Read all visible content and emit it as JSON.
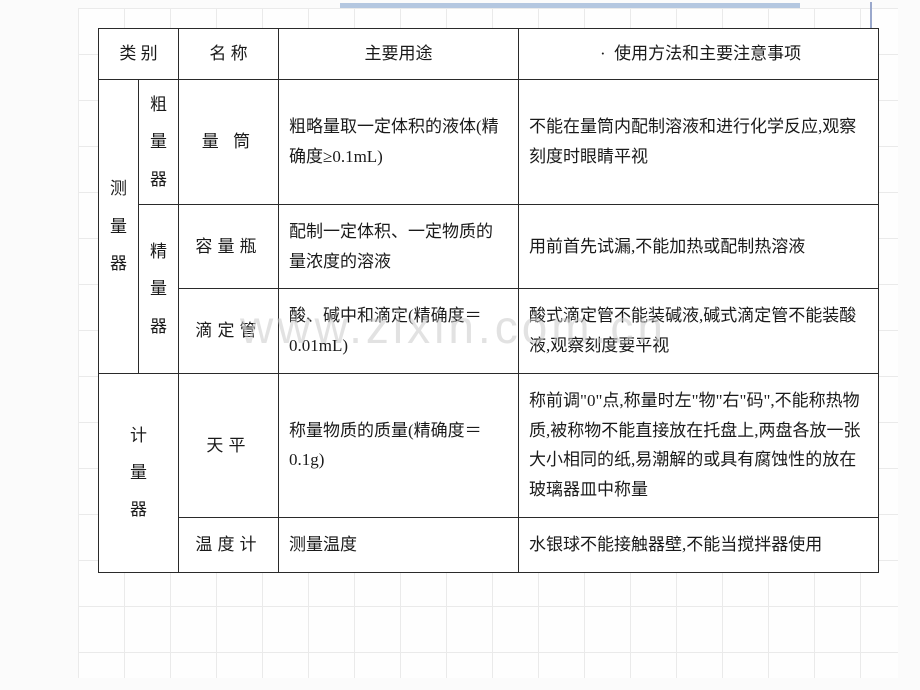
{
  "headers": {
    "category": "类 别",
    "name": "名 称",
    "use": "主要用途",
    "notes": "使用方法和主要注意事项",
    "notes_prefix": "·"
  },
  "watermark": "www.zixin.com.cn",
  "groups": {
    "measure": {
      "label_c1": "测",
      "label_c2": "量",
      "label_c3": "器",
      "sub_coarse": {
        "label_c1": "粗",
        "label_c2": "量",
        "label_c3": "器"
      },
      "sub_fine": {
        "label_c1": "精",
        "label_c2": "量",
        "label_c3": "器"
      }
    },
    "gauge": {
      "label_c1": "计",
      "label_c2": "量",
      "label_c3": "器"
    }
  },
  "rows": [
    {
      "name": "量 筒",
      "use": "粗略量取一定体积的液体(精确度≥0.1mL)",
      "notes": "不能在量筒内配制溶液和进行化学反应,观察刻度时眼睛平视"
    },
    {
      "name": "容量瓶",
      "use": "配制一定体积、一定物质的量浓度的溶液",
      "notes": "用前首先试漏,不能加热或配制热溶液"
    },
    {
      "name": "滴定管",
      "use": "酸、碱中和滴定(精确度＝0.01mL)",
      "notes": "酸式滴定管不能装碱液,碱式滴定管不能装酸液,观察刻度要平视"
    },
    {
      "name": "天平",
      "use": "称量物质的质量(精确度＝0.1g)",
      "notes": "称前调\"0\"点,称量时左\"物\"右\"码\",不能称热物质,被称物不能直接放在托盘上,两盘各放一张大小相同的纸,易潮解的或具有腐蚀性的放在玻璃器皿中称量"
    },
    {
      "name": "温度计",
      "use": "测量温度",
      "notes": "水银球不能接触器壁,不能当搅拌器使用"
    }
  ]
}
